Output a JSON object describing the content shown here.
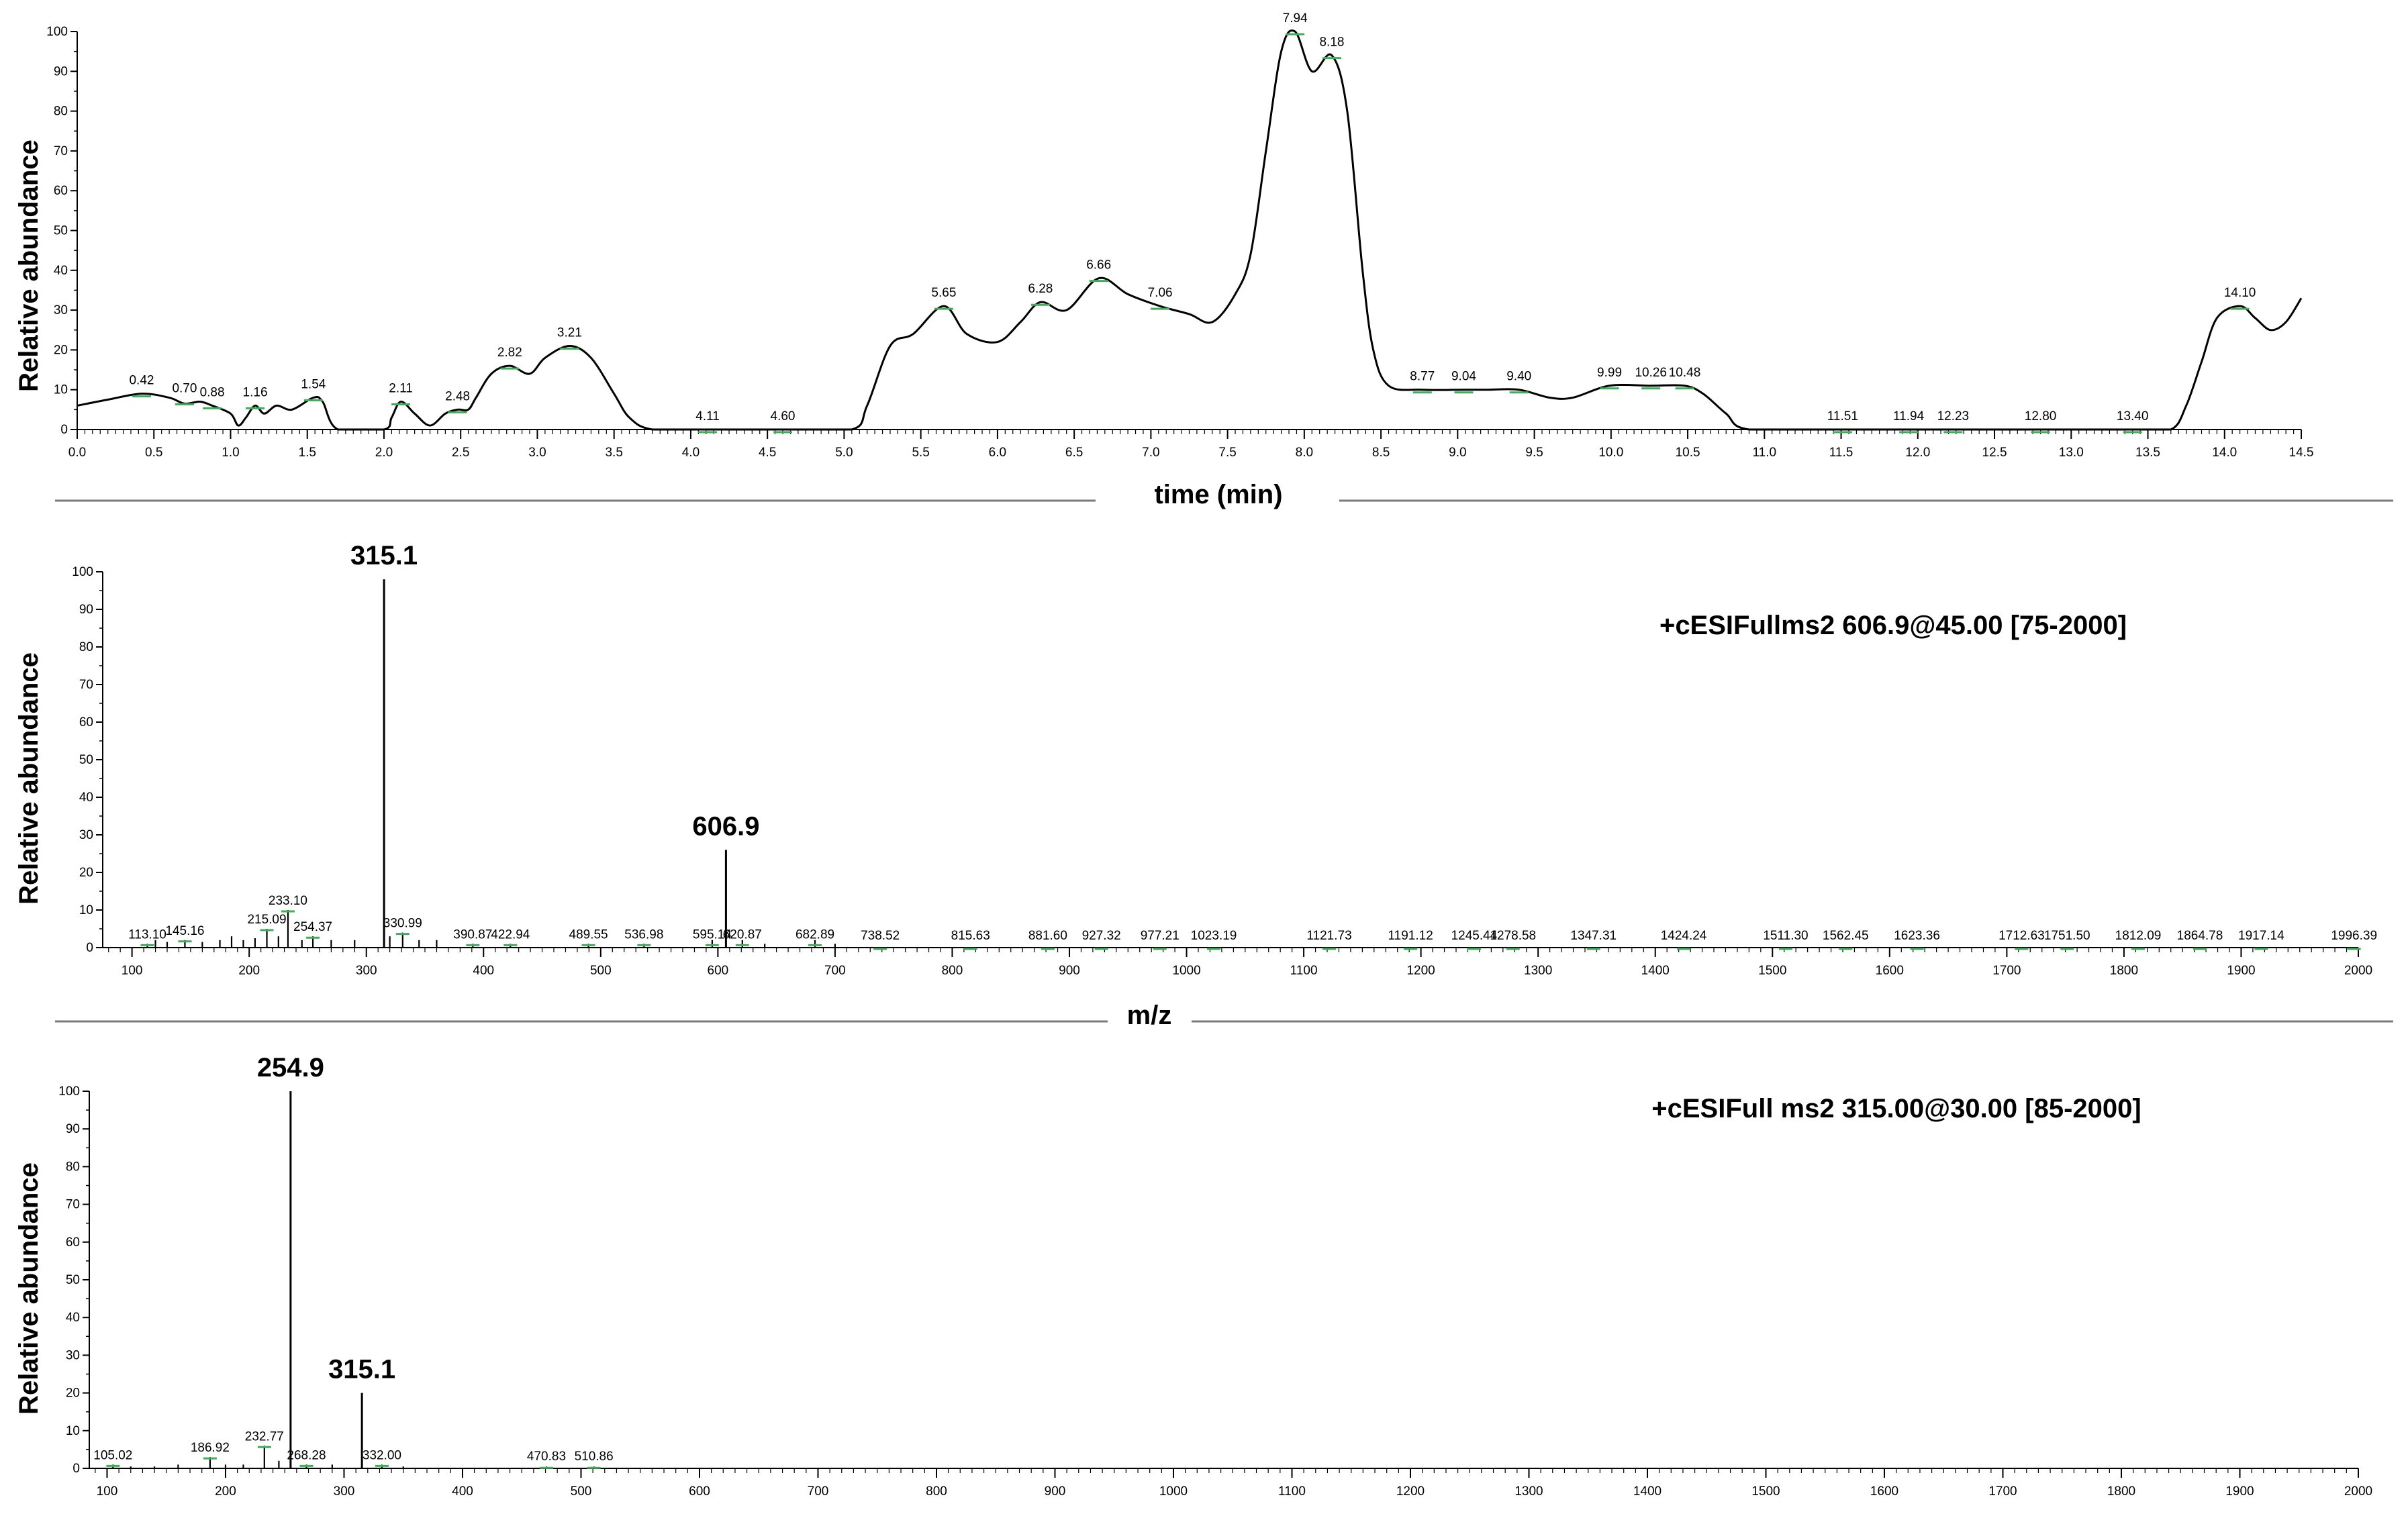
{
  "chart_data": [
    {
      "type": "line",
      "ylabel": "Relative abundance",
      "xlabel": "time (min)",
      "xlim": [
        0,
        14.5
      ],
      "ylim": [
        0,
        100
      ],
      "x_ticks": [
        "0.0",
        "0.5",
        "1.0",
        "1.5",
        "2.0",
        "2.5",
        "3.0",
        "3.5",
        "4.0",
        "4.5",
        "5.0",
        "5.5",
        "6.0",
        "6.5",
        "7.0",
        "7.5",
        "8.0",
        "8.5",
        "9.0",
        "9.5",
        "10.0",
        "10.5",
        "11.0",
        "11.5",
        "12.0",
        "12.5",
        "13.0",
        "13.5",
        "14.0",
        "14.5"
      ],
      "y_ticks": [
        "0",
        "10",
        "20",
        "30",
        "40",
        "50",
        "60",
        "70",
        "80",
        "90",
        "100"
      ],
      "trace": {
        "x": [
          0.0,
          0.2,
          0.42,
          0.6,
          0.7,
          0.8,
          0.88,
          1.0,
          1.05,
          1.1,
          1.16,
          1.22,
          1.3,
          1.4,
          1.54,
          1.6,
          1.7,
          2.0,
          2.05,
          2.11,
          2.2,
          2.3,
          2.4,
          2.48,
          2.55,
          2.6,
          2.7,
          2.82,
          2.95,
          3.05,
          3.21,
          3.35,
          3.5,
          3.6,
          3.75,
          4.11,
          4.6,
          5.05,
          5.15,
          5.3,
          5.45,
          5.65,
          5.8,
          6.0,
          6.15,
          6.28,
          6.45,
          6.66,
          6.85,
          7.06,
          7.25,
          7.4,
          7.55,
          7.65,
          7.75,
          7.85,
          7.94,
          8.05,
          8.18,
          8.28,
          8.38,
          8.45,
          8.55,
          8.77,
          9.04,
          9.2,
          9.4,
          9.6,
          9.75,
          9.99,
          10.26,
          10.48,
          10.6,
          10.75,
          10.9,
          11.51,
          11.94,
          12.23,
          12.8,
          13.4,
          13.65,
          13.75,
          13.85,
          13.95,
          14.1,
          14.2,
          14.3,
          14.4,
          14.5
        ],
        "y": [
          6,
          7.5,
          9,
          8,
          6.5,
          7,
          6,
          4,
          1,
          3,
          6,
          4,
          6,
          5,
          8,
          7,
          0,
          0,
          3,
          7,
          4,
          1,
          4,
          5,
          5,
          8,
          14,
          16,
          14,
          18,
          21,
          18,
          9,
          3,
          0,
          0,
          0,
          0,
          6,
          21,
          24,
          31,
          24,
          22,
          27,
          32,
          30,
          38,
          34,
          31,
          29,
          27,
          34,
          44,
          70,
          95,
          100,
          90,
          94,
          80,
          40,
          20,
          11,
          10,
          10,
          10,
          10,
          8,
          8,
          11,
          11,
          11,
          9,
          4,
          0,
          0,
          0,
          0,
          0,
          0,
          0,
          6,
          17,
          28,
          31,
          28,
          25,
          27,
          33
        ]
      },
      "peak_labels": [
        {
          "x": 0.42,
          "y": 9,
          "text": "0.42"
        },
        {
          "x": 0.7,
          "y": 7,
          "text": "0.70"
        },
        {
          "x": 0.88,
          "y": 6,
          "text": "0.88"
        },
        {
          "x": 1.16,
          "y": 6,
          "text": "1.16"
        },
        {
          "x": 1.54,
          "y": 8,
          "text": "1.54"
        },
        {
          "x": 2.11,
          "y": 7,
          "text": "2.11"
        },
        {
          "x": 2.48,
          "y": 5,
          "text": "2.48"
        },
        {
          "x": 2.82,
          "y": 16,
          "text": "2.82"
        },
        {
          "x": 3.21,
          "y": 21,
          "text": "3.21"
        },
        {
          "x": 4.11,
          "y": 0,
          "text": "4.11"
        },
        {
          "x": 4.6,
          "y": 0,
          "text": "4.60"
        },
        {
          "x": 5.65,
          "y": 31,
          "text": "5.65"
        },
        {
          "x": 6.28,
          "y": 32,
          "text": "6.28"
        },
        {
          "x": 6.66,
          "y": 38,
          "text": "6.66"
        },
        {
          "x": 7.06,
          "y": 31,
          "text": "7.06"
        },
        {
          "x": 7.94,
          "y": 100,
          "text": "7.94"
        },
        {
          "x": 8.18,
          "y": 94,
          "text": "8.18"
        },
        {
          "x": 8.77,
          "y": 10,
          "text": "8.77"
        },
        {
          "x": 9.04,
          "y": 10,
          "text": "9.04"
        },
        {
          "x": 9.4,
          "y": 10,
          "text": "9.40"
        },
        {
          "x": 9.99,
          "y": 11,
          "text": "9.99"
        },
        {
          "x": 10.26,
          "y": 11,
          "text": "10.26"
        },
        {
          "x": 10.48,
          "y": 11,
          "text": "10.48"
        },
        {
          "x": 11.51,
          "y": 0,
          "text": "11.51"
        },
        {
          "x": 11.94,
          "y": 0,
          "text": "11.94"
        },
        {
          "x": 12.23,
          "y": 0,
          "text": "12.23"
        },
        {
          "x": 12.8,
          "y": 0,
          "text": "12.80"
        },
        {
          "x": 13.4,
          "y": 0,
          "text": "13.40"
        },
        {
          "x": 14.1,
          "y": 31,
          "text": "14.10"
        }
      ]
    },
    {
      "type": "bar",
      "ylabel": "Relative abundance",
      "xlabel": "m/z",
      "scan_label": "+cESIFullms2 606.9@45.00 [75-2000]",
      "xlim": [
        75,
        2000
      ],
      "ylim": [
        0,
        100
      ],
      "x_ticks": [
        "100",
        "200",
        "300",
        "400",
        "500",
        "600",
        "700",
        "800",
        "900",
        "1000",
        "1100",
        "1200",
        "1300",
        "1400",
        "1500",
        "1600",
        "1700",
        "1800",
        "1900",
        "2000"
      ],
      "y_ticks": [
        "0",
        "10",
        "20",
        "30",
        "40",
        "50",
        "60",
        "70",
        "80",
        "90",
        "100"
      ],
      "peaks": {
        "x": [
          113.1,
          120,
          130,
          145.16,
          160,
          175,
          185,
          195,
          205,
          215.09,
          225,
          233.1,
          245,
          254.37,
          270,
          290,
          315.1,
          320,
          330.99,
          345,
          360,
          390.87,
          422.94,
          489.55,
          536.98,
          595.14,
          606.9,
          620.87,
          640,
          682.89,
          700
        ],
        "y": [
          1,
          2,
          1.5,
          2,
          1.5,
          2,
          3,
          2,
          2.5,
          5,
          3,
          10,
          2,
          3,
          2,
          2,
          98,
          3,
          4,
          2,
          2,
          1,
          1,
          1,
          1,
          2,
          26,
          2,
          1,
          2,
          1
        ]
      },
      "big_labels": [
        {
          "x": 315.1,
          "y": 98,
          "text": "315.1"
        },
        {
          "x": 606.9,
          "y": 26,
          "text": "606.9"
        }
      ],
      "peak_labels": [
        {
          "x": 113.1,
          "y": 1,
          "text": "113.10"
        },
        {
          "x": 145.16,
          "y": 2,
          "text": "145.16"
        },
        {
          "x": 215.09,
          "y": 5,
          "text": "215.09"
        },
        {
          "x": 233.1,
          "y": 10,
          "text": "233.10"
        },
        {
          "x": 254.37,
          "y": 3,
          "text": "254.37"
        },
        {
          "x": 330.99,
          "y": 4,
          "text": "330.99"
        },
        {
          "x": 390.87,
          "y": 1,
          "text": "390.87"
        },
        {
          "x": 422.94,
          "y": 1,
          "text": "422.94"
        },
        {
          "x": 489.55,
          "y": 1,
          "text": "489.55"
        },
        {
          "x": 536.98,
          "y": 1,
          "text": "536.98"
        },
        {
          "x": 595.14,
          "y": 1,
          "text": "595.14"
        },
        {
          "x": 620.87,
          "y": 1,
          "text": "620.87"
        },
        {
          "x": 682.89,
          "y": 1,
          "text": "682.89"
        },
        {
          "x": 738.52,
          "y": 0,
          "text": "738.52"
        },
        {
          "x": 815.63,
          "y": 0,
          "text": "815.63"
        },
        {
          "x": 881.6,
          "y": 0,
          "text": "881.60"
        },
        {
          "x": 927.32,
          "y": 0,
          "text": "927.32"
        },
        {
          "x": 977.21,
          "y": 0,
          "text": "977.21"
        },
        {
          "x": 1023.19,
          "y": 0,
          "text": "1023.19"
        },
        {
          "x": 1121.73,
          "y": 0,
          "text": "1121.73"
        },
        {
          "x": 1191.12,
          "y": 0,
          "text": "1191.12"
        },
        {
          "x": 1245.44,
          "y": 0,
          "text": "1245.44"
        },
        {
          "x": 1278.58,
          "y": 0,
          "text": "1278.58"
        },
        {
          "x": 1347.31,
          "y": 0,
          "text": "1347.31"
        },
        {
          "x": 1424.24,
          "y": 0,
          "text": "1424.24"
        },
        {
          "x": 1511.3,
          "y": 0,
          "text": "1511.30"
        },
        {
          "x": 1562.45,
          "y": 0,
          "text": "1562.45"
        },
        {
          "x": 1623.36,
          "y": 0,
          "text": "1623.36"
        },
        {
          "x": 1712.63,
          "y": 0,
          "text": "1712.63"
        },
        {
          "x": 1751.5,
          "y": 0,
          "text": "1751.50"
        },
        {
          "x": 1812.09,
          "y": 0,
          "text": "1812.09"
        },
        {
          "x": 1864.78,
          "y": 0,
          "text": "1864.78"
        },
        {
          "x": 1917.14,
          "y": 0,
          "text": "1917.14"
        },
        {
          "x": 1996.39,
          "y": 0,
          "text": "1996.39"
        }
      ]
    },
    {
      "type": "bar",
      "ylabel": "Relative abundance",
      "xlabel": "",
      "scan_label": "+cESIFull ms2 315.00@30.00 [85-2000]",
      "xlim": [
        85,
        2000
      ],
      "ylim": [
        0,
        100
      ],
      "x_ticks": [
        "100",
        "200",
        "300",
        "400",
        "500",
        "600",
        "700",
        "800",
        "900",
        "1000",
        "1100",
        "1200",
        "1300",
        "1400",
        "1500",
        "1600",
        "1700",
        "1800",
        "1900",
        "2000"
      ],
      "y_ticks": [
        "0",
        "10",
        "20",
        "30",
        "40",
        "50",
        "60",
        "70",
        "80",
        "90",
        "100"
      ],
      "peaks": {
        "x": [
          105.02,
          120,
          140,
          160,
          186.92,
          200,
          215,
          232.77,
          245,
          254.9,
          268.28,
          290,
          315.1,
          332.0,
          350,
          470.83,
          510.86
        ],
        "y": [
          1,
          0.5,
          0.5,
          1,
          3,
          1,
          1,
          6,
          2,
          100,
          1,
          1,
          20,
          1,
          0.5,
          0.5,
          0.5
        ]
      },
      "big_labels": [
        {
          "x": 254.9,
          "y": 100,
          "text": "254.9"
        },
        {
          "x": 315.1,
          "y": 20,
          "text": "315.1"
        }
      ],
      "peak_labels": [
        {
          "x": 105.02,
          "y": 1,
          "text": "105.02"
        },
        {
          "x": 186.92,
          "y": 3,
          "text": "186.92"
        },
        {
          "x": 232.77,
          "y": 6,
          "text": "232.77"
        },
        {
          "x": 268.28,
          "y": 1,
          "text": "268.28"
        },
        {
          "x": 332.0,
          "y": 1,
          "text": "332.00"
        },
        {
          "x": 470.83,
          "y": 0.5,
          "text": "470.83"
        },
        {
          "x": 510.86,
          "y": 0.5,
          "text": "510.86"
        }
      ]
    }
  ]
}
